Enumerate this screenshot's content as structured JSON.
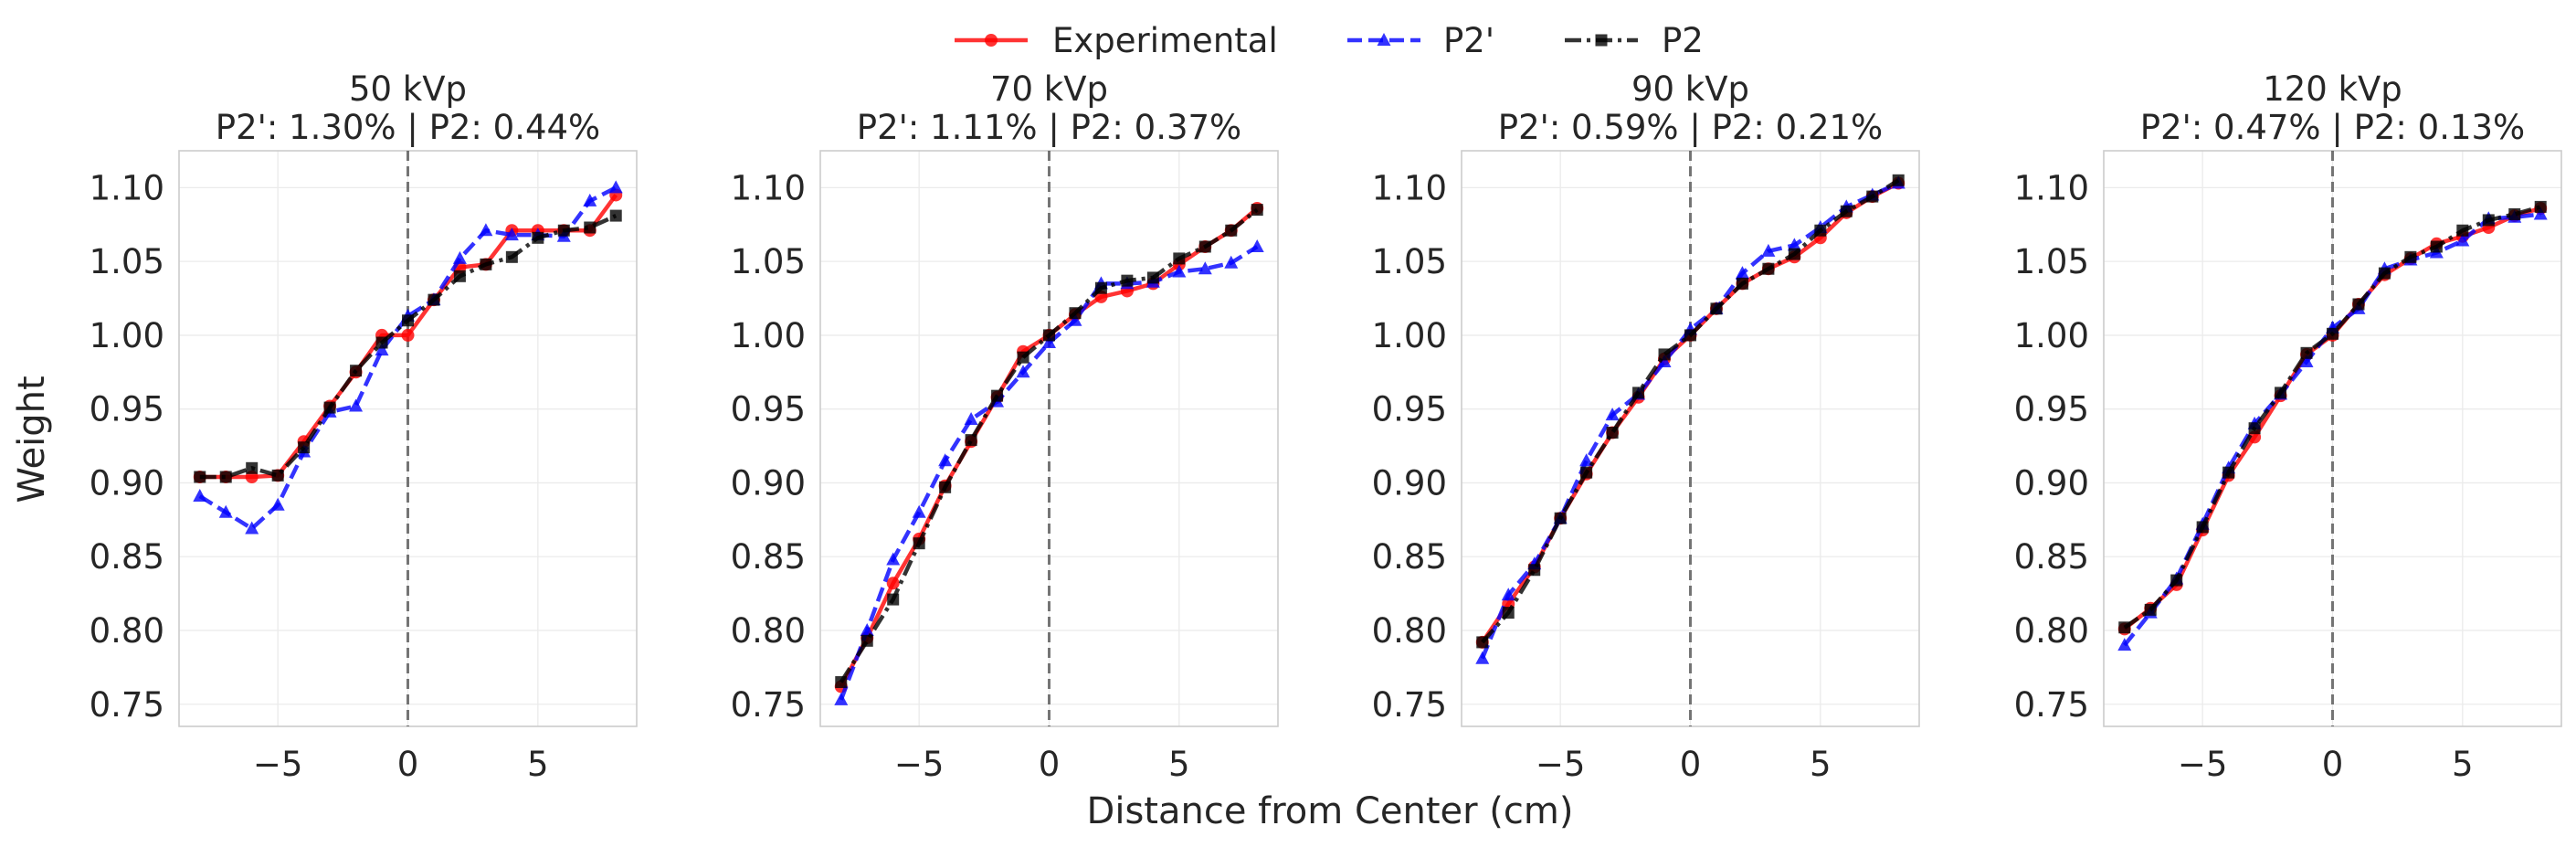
{
  "figure": {
    "ylabel": "Weight",
    "xlabel": "Distance from Center (cm)",
    "legend": [
      {
        "name": "Experimental",
        "color": "#ff0000",
        "marker": "circle",
        "dash": "solid"
      },
      {
        "name": "P2'",
        "color": "#0000ff",
        "marker": "triangle",
        "dash": "dashed"
      },
      {
        "name": "P2",
        "color": "#000000",
        "marker": "square",
        "dash": "dashdot"
      }
    ]
  },
  "chart_data": [
    {
      "type": "line",
      "title": "50 kVp",
      "subtitle": "P2': 1.30% |  P2: 0.44%",
      "xlabel": "Distance from Center (cm)",
      "ylabel": "Weight",
      "xlim": [
        -8.8,
        8.8
      ],
      "ylim": [
        0.735,
        1.125
      ],
      "xticks": [
        -5,
        0,
        5
      ],
      "xtick_labels": [
        "−5",
        "0",
        "5"
      ],
      "yticks": [
        0.75,
        0.8,
        0.85,
        0.9,
        0.95,
        1.0,
        1.05,
        1.1
      ],
      "ytick_labels": [
        "0.75",
        "0.80",
        "0.85",
        "0.90",
        "0.95",
        "1.00",
        "1.05",
        "1.10"
      ],
      "vline_x": 0,
      "grid": true,
      "x": [
        -8,
        -7,
        -6,
        -5,
        -4,
        -3,
        -2,
        -1,
        0,
        1,
        2,
        3,
        4,
        5,
        6,
        7,
        8
      ],
      "series": [
        {
          "name": "Experimental",
          "values": [
            0.904,
            0.904,
            0.904,
            0.905,
            0.928,
            0.952,
            0.975,
            1.0,
            1.0,
            1.024,
            1.046,
            1.048,
            1.071,
            1.071,
            1.071,
            1.071,
            1.095
          ]
        },
        {
          "name": "P2'",
          "values": [
            0.891,
            0.88,
            0.869,
            0.885,
            0.921,
            0.948,
            0.952,
            0.99,
            1.013,
            1.024,
            1.052,
            1.071,
            1.068,
            1.068,
            1.067,
            1.091,
            1.1
          ]
        },
        {
          "name": "P2",
          "values": [
            0.904,
            0.904,
            0.91,
            0.905,
            0.924,
            0.951,
            0.976,
            0.995,
            1.01,
            1.024,
            1.04,
            1.048,
            1.053,
            1.066,
            1.071,
            1.073,
            1.081
          ]
        }
      ]
    },
    {
      "type": "line",
      "title": "70 kVp",
      "subtitle": "P2': 1.11% |  P2: 0.37%",
      "xlabel": "Distance from Center (cm)",
      "ylabel": "Weight",
      "xlim": [
        -8.8,
        8.8
      ],
      "ylim": [
        0.735,
        1.125
      ],
      "xticks": [
        -5,
        0,
        5
      ],
      "xtick_labels": [
        "−5",
        "0",
        "5"
      ],
      "yticks": [
        0.75,
        0.8,
        0.85,
        0.9,
        0.95,
        1.0,
        1.05,
        1.1
      ],
      "ytick_labels": [
        "0.75",
        "0.80",
        "0.85",
        "0.90",
        "0.95",
        "1.00",
        "1.05",
        "1.10"
      ],
      "vline_x": 0,
      "grid": true,
      "x": [
        -8,
        -7,
        -6,
        -5,
        -4,
        -3,
        -2,
        -1,
        0,
        1,
        2,
        3,
        4,
        5,
        6,
        7,
        8
      ],
      "series": [
        {
          "name": "Experimental",
          "values": [
            0.762,
            0.795,
            0.832,
            0.862,
            0.898,
            0.928,
            0.958,
            0.989,
            1.0,
            1.014,
            1.026,
            1.03,
            1.035,
            1.048,
            1.06,
            1.071,
            1.086
          ]
        },
        {
          "name": "P2'",
          "values": [
            0.753,
            0.8,
            0.848,
            0.88,
            0.915,
            0.943,
            0.955,
            0.975,
            0.995,
            1.01,
            1.035,
            1.035,
            1.036,
            1.043,
            1.045,
            1.049,
            1.06
          ]
        },
        {
          "name": "P2",
          "values": [
            0.765,
            0.793,
            0.821,
            0.859,
            0.897,
            0.929,
            0.959,
            0.985,
            1.0,
            1.015,
            1.032,
            1.037,
            1.039,
            1.052,
            1.06,
            1.071,
            1.085
          ]
        }
      ]
    },
    {
      "type": "line",
      "title": "90 kVp",
      "subtitle": "P2': 0.59% |  P2: 0.21%",
      "xlabel": "Distance from Center (cm)",
      "ylabel": "Weight",
      "xlim": [
        -8.8,
        8.8
      ],
      "ylim": [
        0.735,
        1.125
      ],
      "xticks": [
        -5,
        0,
        5
      ],
      "xtick_labels": [
        "−5",
        "0",
        "5"
      ],
      "yticks": [
        0.75,
        0.8,
        0.85,
        0.9,
        0.95,
        1.0,
        1.05,
        1.1
      ],
      "ytick_labels": [
        "0.75",
        "0.80",
        "0.85",
        "0.90",
        "0.95",
        "1.00",
        "1.05",
        "1.10"
      ],
      "vline_x": 0,
      "grid": true,
      "x": [
        -8,
        -7,
        -6,
        -5,
        -4,
        -3,
        -2,
        -1,
        0,
        1,
        2,
        3,
        4,
        5,
        6,
        7,
        8
      ],
      "series": [
        {
          "name": "Experimental",
          "values": [
            0.792,
            0.818,
            0.843,
            0.876,
            0.906,
            0.934,
            0.958,
            0.984,
            1.0,
            1.018,
            1.035,
            1.045,
            1.053,
            1.066,
            1.083,
            1.094,
            1.103
          ]
        },
        {
          "name": "P2'",
          "values": [
            0.781,
            0.824,
            0.845,
            0.876,
            0.915,
            0.946,
            0.96,
            0.982,
            1.004,
            1.018,
            1.042,
            1.057,
            1.061,
            1.073,
            1.087,
            1.095,
            1.103
          ]
        },
        {
          "name": "P2",
          "values": [
            0.792,
            0.812,
            0.841,
            0.876,
            0.907,
            0.934,
            0.961,
            0.987,
            1.0,
            1.018,
            1.035,
            1.045,
            1.055,
            1.071,
            1.084,
            1.094,
            1.105
          ]
        }
      ]
    },
    {
      "type": "line",
      "title": "120 kVp",
      "subtitle": "P2': 0.47% |  P2: 0.13%",
      "xlabel": "Distance from Center (cm)",
      "ylabel": "Weight",
      "xlim": [
        -8.8,
        8.8
      ],
      "ylim": [
        0.735,
        1.125
      ],
      "xticks": [
        -5,
        0,
        5
      ],
      "xtick_labels": [
        "−5",
        "0",
        "5"
      ],
      "yticks": [
        0.75,
        0.8,
        0.85,
        0.9,
        0.95,
        1.0,
        1.05,
        1.1
      ],
      "ytick_labels": [
        "0.75",
        "0.80",
        "0.85",
        "0.90",
        "0.95",
        "1.00",
        "1.05",
        "1.10"
      ],
      "vline_x": 0,
      "grid": true,
      "x": [
        -8,
        -7,
        -6,
        -5,
        -4,
        -3,
        -2,
        -1,
        0,
        1,
        2,
        3,
        4,
        5,
        6,
        7,
        8
      ],
      "series": [
        {
          "name": "Experimental",
          "values": [
            0.801,
            0.815,
            0.831,
            0.868,
            0.905,
            0.931,
            0.959,
            0.987,
            1.0,
            1.021,
            1.041,
            1.052,
            1.062,
            1.067,
            1.073,
            1.081,
            1.086
          ]
        },
        {
          "name": "P2'",
          "values": [
            0.79,
            0.812,
            0.835,
            0.872,
            0.91,
            0.94,
            0.96,
            0.982,
            1.005,
            1.018,
            1.045,
            1.051,
            1.056,
            1.064,
            1.079,
            1.08,
            1.082
          ]
        },
        {
          "name": "P2",
          "values": [
            0.802,
            0.814,
            0.834,
            0.87,
            0.907,
            0.937,
            0.961,
            0.988,
            1.001,
            1.021,
            1.042,
            1.053,
            1.06,
            1.071,
            1.078,
            1.082,
            1.087
          ]
        }
      ]
    }
  ]
}
